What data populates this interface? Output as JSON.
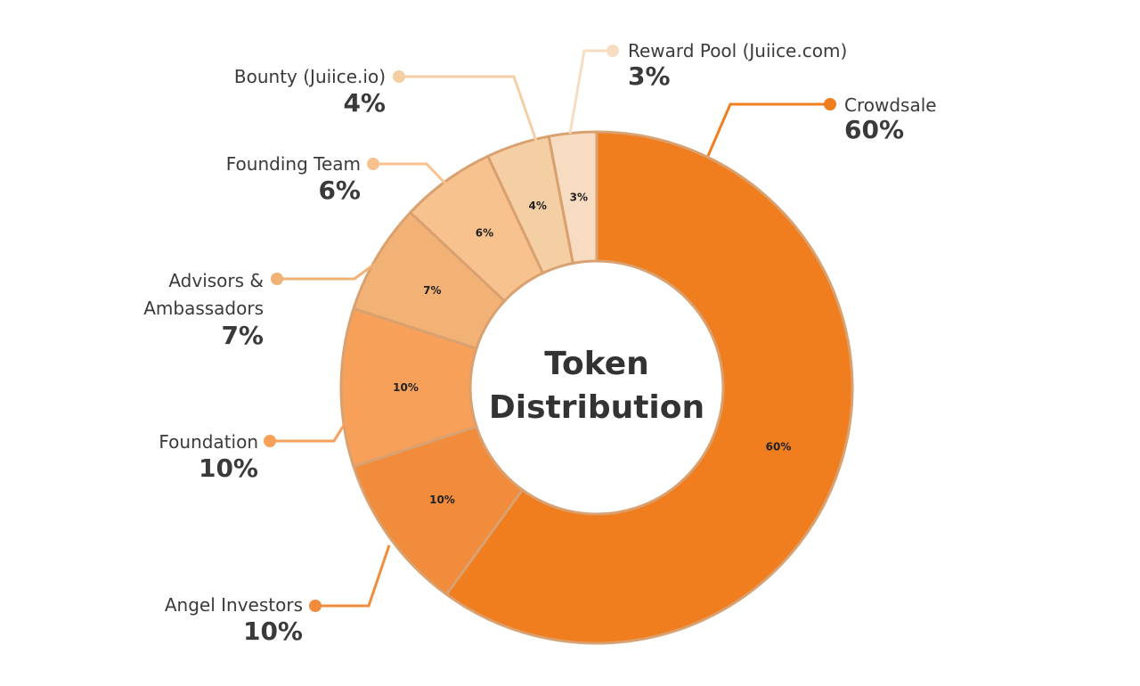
{
  "chart_data": {
    "type": "pie",
    "variant": "donut",
    "center_title_line1": "Token",
    "center_title_line2": "Distribution",
    "slices": [
      {
        "name": "Crowdsale",
        "value": 60,
        "slice_label": "60%",
        "pct_label": "60%",
        "color": "#f07d1e"
      },
      {
        "name": "Angel Investors",
        "value": 10,
        "slice_label": "10%",
        "pct_label": "10%",
        "color": "#f08c3c"
      },
      {
        "name": "Foundation",
        "value": 10,
        "slice_label": "10%",
        "pct_label": "10%",
        "color": "#f7a05a"
      },
      {
        "name": "Advisors & Ambassadors",
        "name_lines": [
          "Advisors &",
          "Ambassadors"
        ],
        "value": 7,
        "slice_label": "7%",
        "pct_label": "7%",
        "color": "#f2b276"
      },
      {
        "name": "Founding Team",
        "value": 6,
        "slice_label": "6%",
        "pct_label": "6%",
        "color": "#f7c28e"
      },
      {
        "name": "Bounty (Juiice.io)",
        "value": 4,
        "slice_label": "4%",
        "pct_label": "4%",
        "color": "#f5cfa4"
      },
      {
        "name": "Reward Pool (Juiice.com)",
        "value": 3,
        "slice_label": "3%",
        "pct_label": "3%",
        "color": "#f8dcc2"
      }
    ]
  }
}
